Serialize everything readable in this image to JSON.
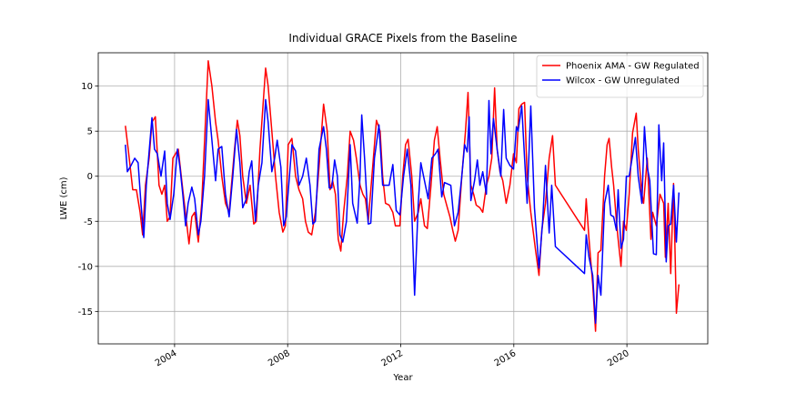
{
  "chart_data": {
    "type": "line",
    "title": "Individual GRACE Pixels from the Baseline",
    "x_label": "Year",
    "y_label": "LWE (cm)",
    "xlim": [
      2001.3,
      2022.86
    ],
    "ylim": [
      -18.6,
      13.7
    ],
    "xticks": [
      2004,
      2008,
      2012,
      2016,
      2020
    ],
    "yticks": [
      -15,
      -10,
      -5,
      0,
      5,
      10
    ],
    "grid": true,
    "legend_position": "upper right",
    "series": [
      {
        "name": "Phoenix AMA - GW Regulated",
        "color": "#ff0000",
        "x": [
          2002.26,
          2002.36,
          2002.52,
          2002.65,
          2002.78,
          2002.87,
          2002.97,
          2003.1,
          2003.2,
          2003.32,
          2003.45,
          2003.55,
          2003.65,
          2003.74,
          2003.84,
          2003.94,
          2004.13,
          2004.29,
          2004.42,
          2004.51,
          2004.61,
          2004.71,
          2004.84,
          2004.96,
          2005.19,
          2005.32,
          2005.45,
          2005.54,
          2005.67,
          2005.8,
          2005.93,
          2006.12,
          2006.22,
          2006.31,
          2006.41,
          2006.54,
          2006.67,
          2006.8,
          2006.89,
          2007.02,
          2007.22,
          2007.31,
          2007.44,
          2007.57,
          2007.7,
          2007.83,
          2007.92,
          2008.02,
          2008.15,
          2008.28,
          2008.4,
          2008.53,
          2008.63,
          2008.73,
          2008.85,
          2008.98,
          2009.11,
          2009.27,
          2009.4,
          2009.5,
          2009.59,
          2009.69,
          2009.79,
          2009.88,
          2009.98,
          2010.11,
          2010.21,
          2010.33,
          2010.43,
          2010.56,
          2010.66,
          2010.75,
          2010.85,
          2010.98,
          2011.14,
          2011.27,
          2011.36,
          2011.46,
          2011.59,
          2011.72,
          2011.81,
          2011.97,
          2012.07,
          2012.17,
          2012.26,
          2012.39,
          2012.49,
          2012.62,
          2012.71,
          2012.84,
          2012.94,
          2013.07,
          2013.19,
          2013.29,
          2013.39,
          2013.52,
          2013.65,
          2013.74,
          2013.84,
          2013.93,
          2014.03,
          2014.16,
          2014.29,
          2014.38,
          2014.48,
          2014.58,
          2014.67,
          2014.8,
          2014.9,
          2015.03,
          2015.12,
          2015.22,
          2015.32,
          2015.41,
          2015.51,
          2015.61,
          2015.73,
          2015.86,
          2015.99,
          2016.09,
          2016.18,
          2016.28,
          2016.38,
          2016.47,
          2016.6,
          2016.76,
          2016.89,
          2016.99,
          2017.12,
          2017.25,
          2017.37,
          2017.47,
          2018.5,
          2018.56,
          2018.66,
          2018.79,
          2018.89,
          2018.98,
          2019.08,
          2019.21,
          2019.3,
          2019.37,
          2019.46,
          2019.53,
          2019.63,
          2019.69,
          2019.79,
          2019.88,
          2019.98,
          2020.08,
          2020.2,
          2020.33,
          2020.4,
          2020.53,
          2020.59,
          2020.72,
          2020.85,
          2020.91,
          2021.04,
          2021.17,
          2021.3,
          2021.36,
          2021.46,
          2021.55,
          2021.65,
          2021.75,
          2021.84
        ],
        "values": [
          5.6,
          3,
          -1.5,
          -1.5,
          -4,
          -6.5,
          -1,
          2,
          6,
          6.6,
          -1,
          -2,
          -1,
          -5,
          -4.5,
          2,
          3,
          -1.5,
          -5,
          -7.5,
          -4.5,
          -4,
          -7.3,
          -3,
          12.8,
          10,
          6,
          4,
          0,
          -3,
          -4,
          3,
          6.2,
          4.5,
          0,
          -3,
          -1,
          -5.3,
          -5,
          3,
          12,
          10,
          5,
          0,
          -4,
          -6.2,
          -5.5,
          3.5,
          4.2,
          0,
          -1.5,
          -2.5,
          -5,
          -6.2,
          -6.5,
          -4,
          1,
          8,
          5,
          -1.5,
          -0.5,
          -2,
          -7,
          -8.3,
          -4,
          0,
          5,
          4,
          2,
          -1,
          -2,
          -2.5,
          -5,
          0,
          6.2,
          5,
          0,
          -3,
          -3.2,
          -4,
          -5.5,
          -5.5,
          0,
          3.5,
          4.1,
          0,
          -5,
          -4,
          -2.5,
          -5.5,
          -5.8,
          -1,
          4,
          5.5,
          2,
          -2,
          -3.5,
          -4.5,
          -6,
          -7.2,
          -6,
          0,
          5,
          9.3,
          -1,
          -2,
          -3.2,
          -3.5,
          -4,
          -1,
          0,
          2,
          9.8,
          3,
          0.5,
          -0.5,
          -3,
          -1,
          2.5,
          1.5,
          7.5,
          8,
          8.2,
          0,
          -4,
          -8,
          -11,
          -6,
          -3,
          2,
          4.5,
          -1,
          -6,
          -2.5,
          -7,
          -12,
          -17.2,
          -8.5,
          -8.2,
          0,
          3.5,
          4.2,
          1,
          -1,
          -5,
          -7,
          -10,
          -5,
          -6,
          -2,
          4.8,
          7,
          3,
          -2,
          -3,
          2,
          -7,
          -4,
          -5.5,
          -2,
          -3,
          -9,
          -3,
          -10.8,
          -0.8,
          -15.2,
          -12
        ]
      },
      {
        "name": "Wilcox - GW Unregulated",
        "color": "#0000ff",
        "x": [
          2002.26,
          2002.33,
          2002.46,
          2002.59,
          2002.71,
          2002.81,
          2002.91,
          2003.0,
          2003.2,
          2003.29,
          2003.39,
          2003.52,
          2003.65,
          2003.74,
          2003.84,
          2003.97,
          2004.1,
          2004.19,
          2004.29,
          2004.39,
          2004.48,
          2004.61,
          2004.71,
          2004.84,
          2004.93,
          2005.06,
          2005.19,
          2005.32,
          2005.45,
          2005.54,
          2005.67,
          2005.8,
          2005.93,
          2006.06,
          2006.19,
          2006.31,
          2006.41,
          2006.54,
          2006.64,
          2006.73,
          2006.86,
          2006.96,
          2007.09,
          2007.22,
          2007.31,
          2007.44,
          2007.54,
          2007.63,
          2007.76,
          2007.86,
          2007.95,
          2008.15,
          2008.28,
          2008.4,
          2008.53,
          2008.66,
          2008.79,
          2008.89,
          2008.98,
          2009.11,
          2009.27,
          2009.37,
          2009.47,
          2009.56,
          2009.66,
          2009.76,
          2009.85,
          2009.95,
          2010.08,
          2010.21,
          2010.3,
          2010.46,
          2010.56,
          2010.62,
          2010.72,
          2010.85,
          2010.94,
          2011.07,
          2011.23,
          2011.36,
          2011.49,
          2011.59,
          2011.72,
          2011.84,
          2011.97,
          2012.1,
          2012.23,
          2012.36,
          2012.49,
          2012.62,
          2012.71,
          2012.84,
          2012.97,
          2013.1,
          2013.23,
          2013.32,
          2013.45,
          2013.55,
          2013.77,
          2013.9,
          2014.03,
          2014.16,
          2014.26,
          2014.35,
          2014.42,
          2014.48,
          2014.61,
          2014.71,
          2014.8,
          2014.9,
          2015.03,
          2015.12,
          2015.19,
          2015.28,
          2015.41,
          2015.54,
          2015.64,
          2015.73,
          2015.86,
          2015.99,
          2016.09,
          2016.15,
          2016.28,
          2016.38,
          2016.47,
          2016.6,
          2016.73,
          2016.89,
          2017.02,
          2017.12,
          2017.25,
          2017.34,
          2017.47,
          2018.5,
          2018.56,
          2018.66,
          2018.79,
          2018.89,
          2018.98,
          2019.08,
          2019.21,
          2019.34,
          2019.43,
          2019.53,
          2019.63,
          2019.69,
          2019.79,
          2019.88,
          2019.98,
          2020.08,
          2020.2,
          2020.3,
          2020.4,
          2020.53,
          2020.62,
          2020.72,
          2020.81,
          2020.94,
          2021.04,
          2021.13,
          2021.23,
          2021.3,
          2021.39,
          2021.46,
          2021.55,
          2021.65,
          2021.75,
          2021.84
        ],
        "values": [
          3.5,
          0.5,
          1.2,
          2,
          1.5,
          -3,
          -6.8,
          -1,
          6.5,
          3,
          2.5,
          0,
          2.8,
          -3,
          -4.8,
          -2,
          3,
          1,
          -2,
          -5.5,
          -3,
          -1.2,
          -2.5,
          -6.5,
          -5,
          0,
          8.5,
          4,
          -0.5,
          3,
          3.3,
          -2,
          -4.5,
          0,
          5.2,
          1.5,
          -3.5,
          -2.5,
          0.5,
          1.7,
          -5,
          -1,
          1.5,
          8.5,
          6,
          0.5,
          2,
          4,
          1,
          -5.5,
          -4.5,
          3.5,
          2.8,
          -1,
          0,
          2,
          -1,
          -5.3,
          -5,
          3,
          5.5,
          3,
          -1.3,
          -1.3,
          1.8,
          0,
          -6.5,
          -7.3,
          -5,
          3.5,
          -3,
          -5.2,
          0,
          6.8,
          2,
          -5.3,
          -5.2,
          2,
          5.7,
          -1,
          -1,
          -1,
          1.3,
          -3.8,
          -4.3,
          0,
          3,
          -1,
          -13.2,
          -3,
          1.5,
          -0.5,
          -2.5,
          2,
          2.5,
          3,
          -2.3,
          -0.7,
          -1,
          -5.5,
          -4,
          0,
          3.5,
          2.7,
          6.6,
          -2.7,
          -0.5,
          1.8,
          -1,
          0.5,
          -2,
          8.4,
          2.5,
          6.4,
          3,
          0,
          7.4,
          2,
          1.2,
          0.8,
          5.5,
          5,
          7.8,
          2,
          -3,
          7.8,
          -3.5,
          -10.2,
          -5,
          1.2,
          -6.3,
          -1,
          -7.8,
          -10.8,
          -6.5,
          -9,
          -11,
          -16.3,
          -11,
          -13.2,
          -3,
          -1,
          -4.3,
          -4.5,
          -6,
          -1.5,
          -8,
          -7,
          0,
          0,
          2.3,
          4.3,
          0,
          -3,
          5.5,
          1,
          -0.5,
          -8.6,
          -8.7,
          5.7,
          -0.5,
          3.7,
          -9.5,
          -5.5,
          -5.3,
          -1,
          -7.3,
          -1.8
        ]
      }
    ]
  }
}
